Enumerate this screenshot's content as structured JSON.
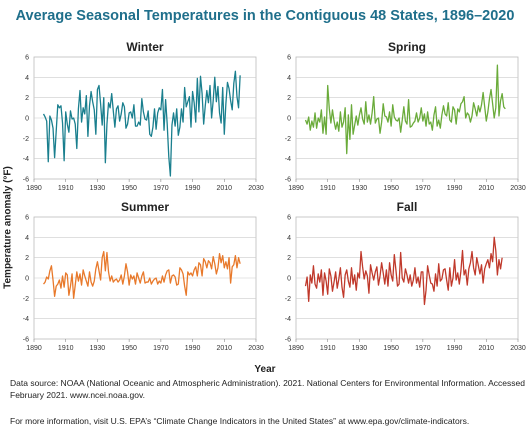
{
  "title": "Average Seasonal Temperatures in the Contiguous 48 States, 1896–2020",
  "ylabel": "Temperature anomaly (°F)",
  "xlabel": "Year",
  "source_text": "Data source: NOAA (National Oceanic and Atmospheric Administration). 2021. National Centers for Environmental Information. Accessed February 2021. www.ncei.noaa.gov.",
  "more_info_text": "For more information, visit U.S. EPA’s “Climate Change Indicators in the United States” at www.epa.gov/climate-indicators.",
  "chart_data": [
    {
      "type": "line",
      "title": "Winter",
      "color": "#1a7f8e",
      "xlim": [
        1890,
        2030
      ],
      "ylim": [
        -6,
        6
      ],
      "xticks": [
        1890,
        1910,
        1930,
        1950,
        1970,
        1990,
        2010,
        2030
      ],
      "yticks": [
        -6,
        -4,
        -2,
        0,
        2,
        4,
        6
      ],
      "x_start": 1896,
      "values": [
        0.4,
        0.1,
        -0.3,
        -4.3,
        0.2,
        -0.2,
        -1.0,
        -3.9,
        -1.3,
        1.3,
        1.0,
        1.2,
        -0.5,
        -4.2,
        0.6,
        -0.6,
        -1.4,
        0.7,
        -0.1,
        0.0,
        -0.6,
        -3.0,
        0.9,
        2.7,
        -0.4,
        1.0,
        0.4,
        2.2,
        -1.8,
        1.2,
        2.6,
        1.6,
        0.8,
        -1.6,
        2.8,
        3.2,
        1.4,
        -0.7,
        2.0,
        -4.4,
        -0.6,
        1.5,
        1.0,
        2.4,
        0.7,
        -0.9,
        0.9,
        1.2,
        -0.3,
        0.4,
        1.5,
        1.1,
        -1.0,
        -0.6,
        0.5,
        0.6,
        0.0,
        1.3,
        -0.8,
        -0.8,
        -0.4,
        -0.7,
        1.9,
        0.6,
        -0.1,
        -0.2,
        0.7,
        -1.6,
        -1.8,
        -0.9,
        0.9,
        -1.1,
        0.5,
        1.0,
        0.8,
        2.8,
        -1.2,
        1.8,
        -0.6,
        -3.8,
        -5.7,
        -0.7,
        0.5,
        -0.8,
        0.9,
        -1.7,
        -0.9,
        0.9,
        -0.4,
        3.0,
        1.1,
        1.6,
        2.1,
        -0.9,
        2.6,
        1.5,
        -0.4,
        3.9,
        0.6,
        4.1,
        2.4,
        -0.6,
        1.2,
        2.7,
        1.5,
        3.2,
        0.0,
        1.7,
        4.0,
        1.6,
        3.1,
        0.5,
        -0.5,
        3.0,
        -1.6,
        1.4,
        3.5,
        2.9,
        1.7,
        0.8,
        3.4,
        4.6,
        2.1,
        1.0,
        4.2
      ]
    },
    {
      "type": "line",
      "title": "Spring",
      "color": "#6aab3a",
      "xlim": [
        1890,
        2030
      ],
      "ylim": [
        -6,
        6
      ],
      "xticks": [
        1890,
        1910,
        1930,
        1950,
        1970,
        1990,
        2010,
        2030
      ],
      "yticks": [
        -6,
        -4,
        -2,
        0,
        2,
        4,
        6
      ],
      "x_start": 1896,
      "values": [
        -0.2,
        -0.6,
        0.1,
        -1.2,
        -0.3,
        -0.9,
        0.5,
        -1.0,
        0.0,
        -0.4,
        0.8,
        -1.5,
        0.1,
        -1.6,
        3.2,
        0.9,
        -0.5,
        0.8,
        -0.3,
        -1.1,
        -0.4,
        -1.3,
        0.6,
        -0.9,
        -0.4,
        1.0,
        -3.5,
        0.3,
        -2.1,
        1.3,
        -1.6,
        -0.7,
        0.2,
        -0.7,
        0.3,
        1.0,
        -0.1,
        -0.6,
        1.6,
        -0.4,
        0.3,
        -0.6,
        0.5,
        2.1,
        -0.5,
        -0.1,
        0.0,
        -1.5,
        -0.4,
        1.4,
        0.2,
        0.1,
        -0.4,
        0.6,
        -0.8,
        1.3,
        0.1,
        -0.2,
        -0.3,
        0.0,
        -1.4,
        -0.2,
        1.1,
        -0.3,
        -0.6,
        1.8,
        -0.9,
        -0.8,
        -0.5,
        -0.3,
        0.5,
        -0.4,
        0.0,
        1.0,
        -0.3,
        0.4,
        -0.8,
        0.6,
        -0.6,
        -0.4,
        -1.2,
        0.3,
        1.1,
        -0.8,
        -0.2,
        -1.0,
        0.3,
        1.2,
        0.4,
        0.2,
        1.5,
        -0.2,
        -0.4,
        1.1,
        0.8,
        -0.6,
        0.9,
        0.6,
        1.4,
        1.6,
        2.1,
        0.0,
        0.5,
        0.3,
        -0.4,
        0.2,
        1.5,
        0.9,
        0.2,
        1.2,
        0.6,
        1.3,
        2.5,
        1.1,
        -0.3,
        0.6,
        1.9,
        2.8,
        1.4,
        0.0,
        1.0,
        5.2,
        0.2,
        1.7,
        2.4,
        1.1,
        0.9
      ]
    },
    {
      "type": "line",
      "title": "Summer",
      "color": "#e8792b",
      "xlim": [
        1890,
        2030
      ],
      "ylim": [
        -6,
        6
      ],
      "xticks": [
        1890,
        1910,
        1930,
        1950,
        1970,
        1990,
        2010,
        2030
      ],
      "yticks": [
        -6,
        -4,
        -2,
        0,
        2,
        4,
        6
      ],
      "x_start": 1896,
      "values": [
        -0.6,
        -0.4,
        0.1,
        -0.1,
        0.7,
        1.2,
        -0.2,
        -1.8,
        -0.8,
        -0.6,
        -0.2,
        -1.0,
        0.2,
        -0.9,
        0.5,
        0.3,
        -1.7,
        -0.8,
        0.4,
        -2.0,
        -0.7,
        0.6,
        -0.3,
        0.4,
        -0.7,
        0.8,
        0.2,
        -0.3,
        -0.8,
        0.6,
        -0.4,
        -0.8,
        -0.3,
        0.9,
        1.6,
        0.7,
        -0.2,
        2.0,
        2.6,
        0.7,
        2.5,
        0.6,
        -0.3,
        0.2,
        -0.4,
        -0.2,
        -0.1,
        -0.4,
        -0.2,
        0.3,
        -0.6,
        0.2,
        1.4,
        0.6,
        -0.7,
        0.3,
        -0.1,
        0.2,
        -0.6,
        0.5,
        0.0,
        -0.5,
        0.2,
        0.6,
        -0.5,
        -0.4,
        -0.4,
        0.0,
        -0.6,
        -0.3,
        -0.1,
        0.0,
        -0.6,
        -0.3,
        -0.5,
        0.2,
        -0.4,
        0.3,
        0.7,
        0.8,
        -0.5,
        0.2,
        0.3,
        0.1,
        -0.7,
        -0.6,
        1.0,
        0.8,
        0.4,
        -0.8,
        -1.7,
        0.6,
        0.3,
        0.5,
        0.2,
        0.8,
        1.1,
        0.2,
        1.5,
        1.3,
        0.2,
        1.9,
        1.6,
        1.0,
        1.7,
        1.5,
        0.9,
        2.1,
        1.4,
        0.4,
        1.0,
        2.4,
        1.5,
        2.2,
        1.0,
        1.6,
        0.9,
        2.0,
        -0.5,
        1.1,
        1.3,
        2.2,
        1.0,
        2.0,
        1.4
      ]
    },
    {
      "type": "line",
      "title": "Fall",
      "color": "#c0392b",
      "xlim": [
        1890,
        2030
      ],
      "ylim": [
        -6,
        6
      ],
      "xticks": [
        1890,
        1910,
        1930,
        1950,
        1970,
        1990,
        2010,
        2030
      ],
      "yticks": [
        -6,
        -4,
        -2,
        0,
        2,
        4,
        6
      ],
      "x_start": 1896,
      "values": [
        -0.8,
        0.1,
        -2.3,
        0.3,
        -0.5,
        1.2,
        -0.6,
        -1.0,
        0.4,
        -0.4,
        0.8,
        -1.7,
        0.5,
        -0.3,
        -1.6,
        0.9,
        0.2,
        -1.3,
        -0.4,
        0.6,
        -1.0,
        -0.1,
        1.0,
        -0.9,
        -1.9,
        0.3,
        0.8,
        -0.3,
        -0.9,
        1.0,
        -0.6,
        0.3,
        -1.2,
        0.5,
        0.0,
        2.6,
        1.1,
        -0.1,
        0.7,
        0.2,
        -1.5,
        1.3,
        0.5,
        -0.2,
        0.6,
        1.1,
        -0.7,
        0.2,
        1.5,
        0.5,
        -0.6,
        0.8,
        -0.8,
        1.5,
        0.3,
        -0.3,
        2.3,
        0.8,
        -0.8,
        -0.6,
        2.5,
        0.0,
        -0.4,
        0.9,
        0.3,
        -0.5,
        0.3,
        -0.8,
        -0.2,
        1.0,
        -0.5,
        0.1,
        -0.9,
        0.6,
        0.6,
        -2.6,
        -1.2,
        1.2,
        0.3,
        -0.5,
        -0.6,
        -1.3,
        0.4,
        -0.8,
        1.4,
        -0.3,
        -0.1,
        0.8,
        0.9,
        -0.2,
        -1.2,
        1.0,
        -0.8,
        0.0,
        1.8,
        -0.2,
        0.5,
        -0.6,
        0.7,
        2.7,
        0.3,
        0.8,
        -0.7,
        0.9,
        1.5,
        2.6,
        1.0,
        0.3,
        2.0,
        1.2,
        0.4,
        1.3,
        -0.5,
        0.9,
        1.4,
        1.8,
        1.0,
        2.4,
        1.6,
        4.0,
        2.7,
        0.3,
        1.8,
        0.9,
        2.0
      ]
    }
  ]
}
